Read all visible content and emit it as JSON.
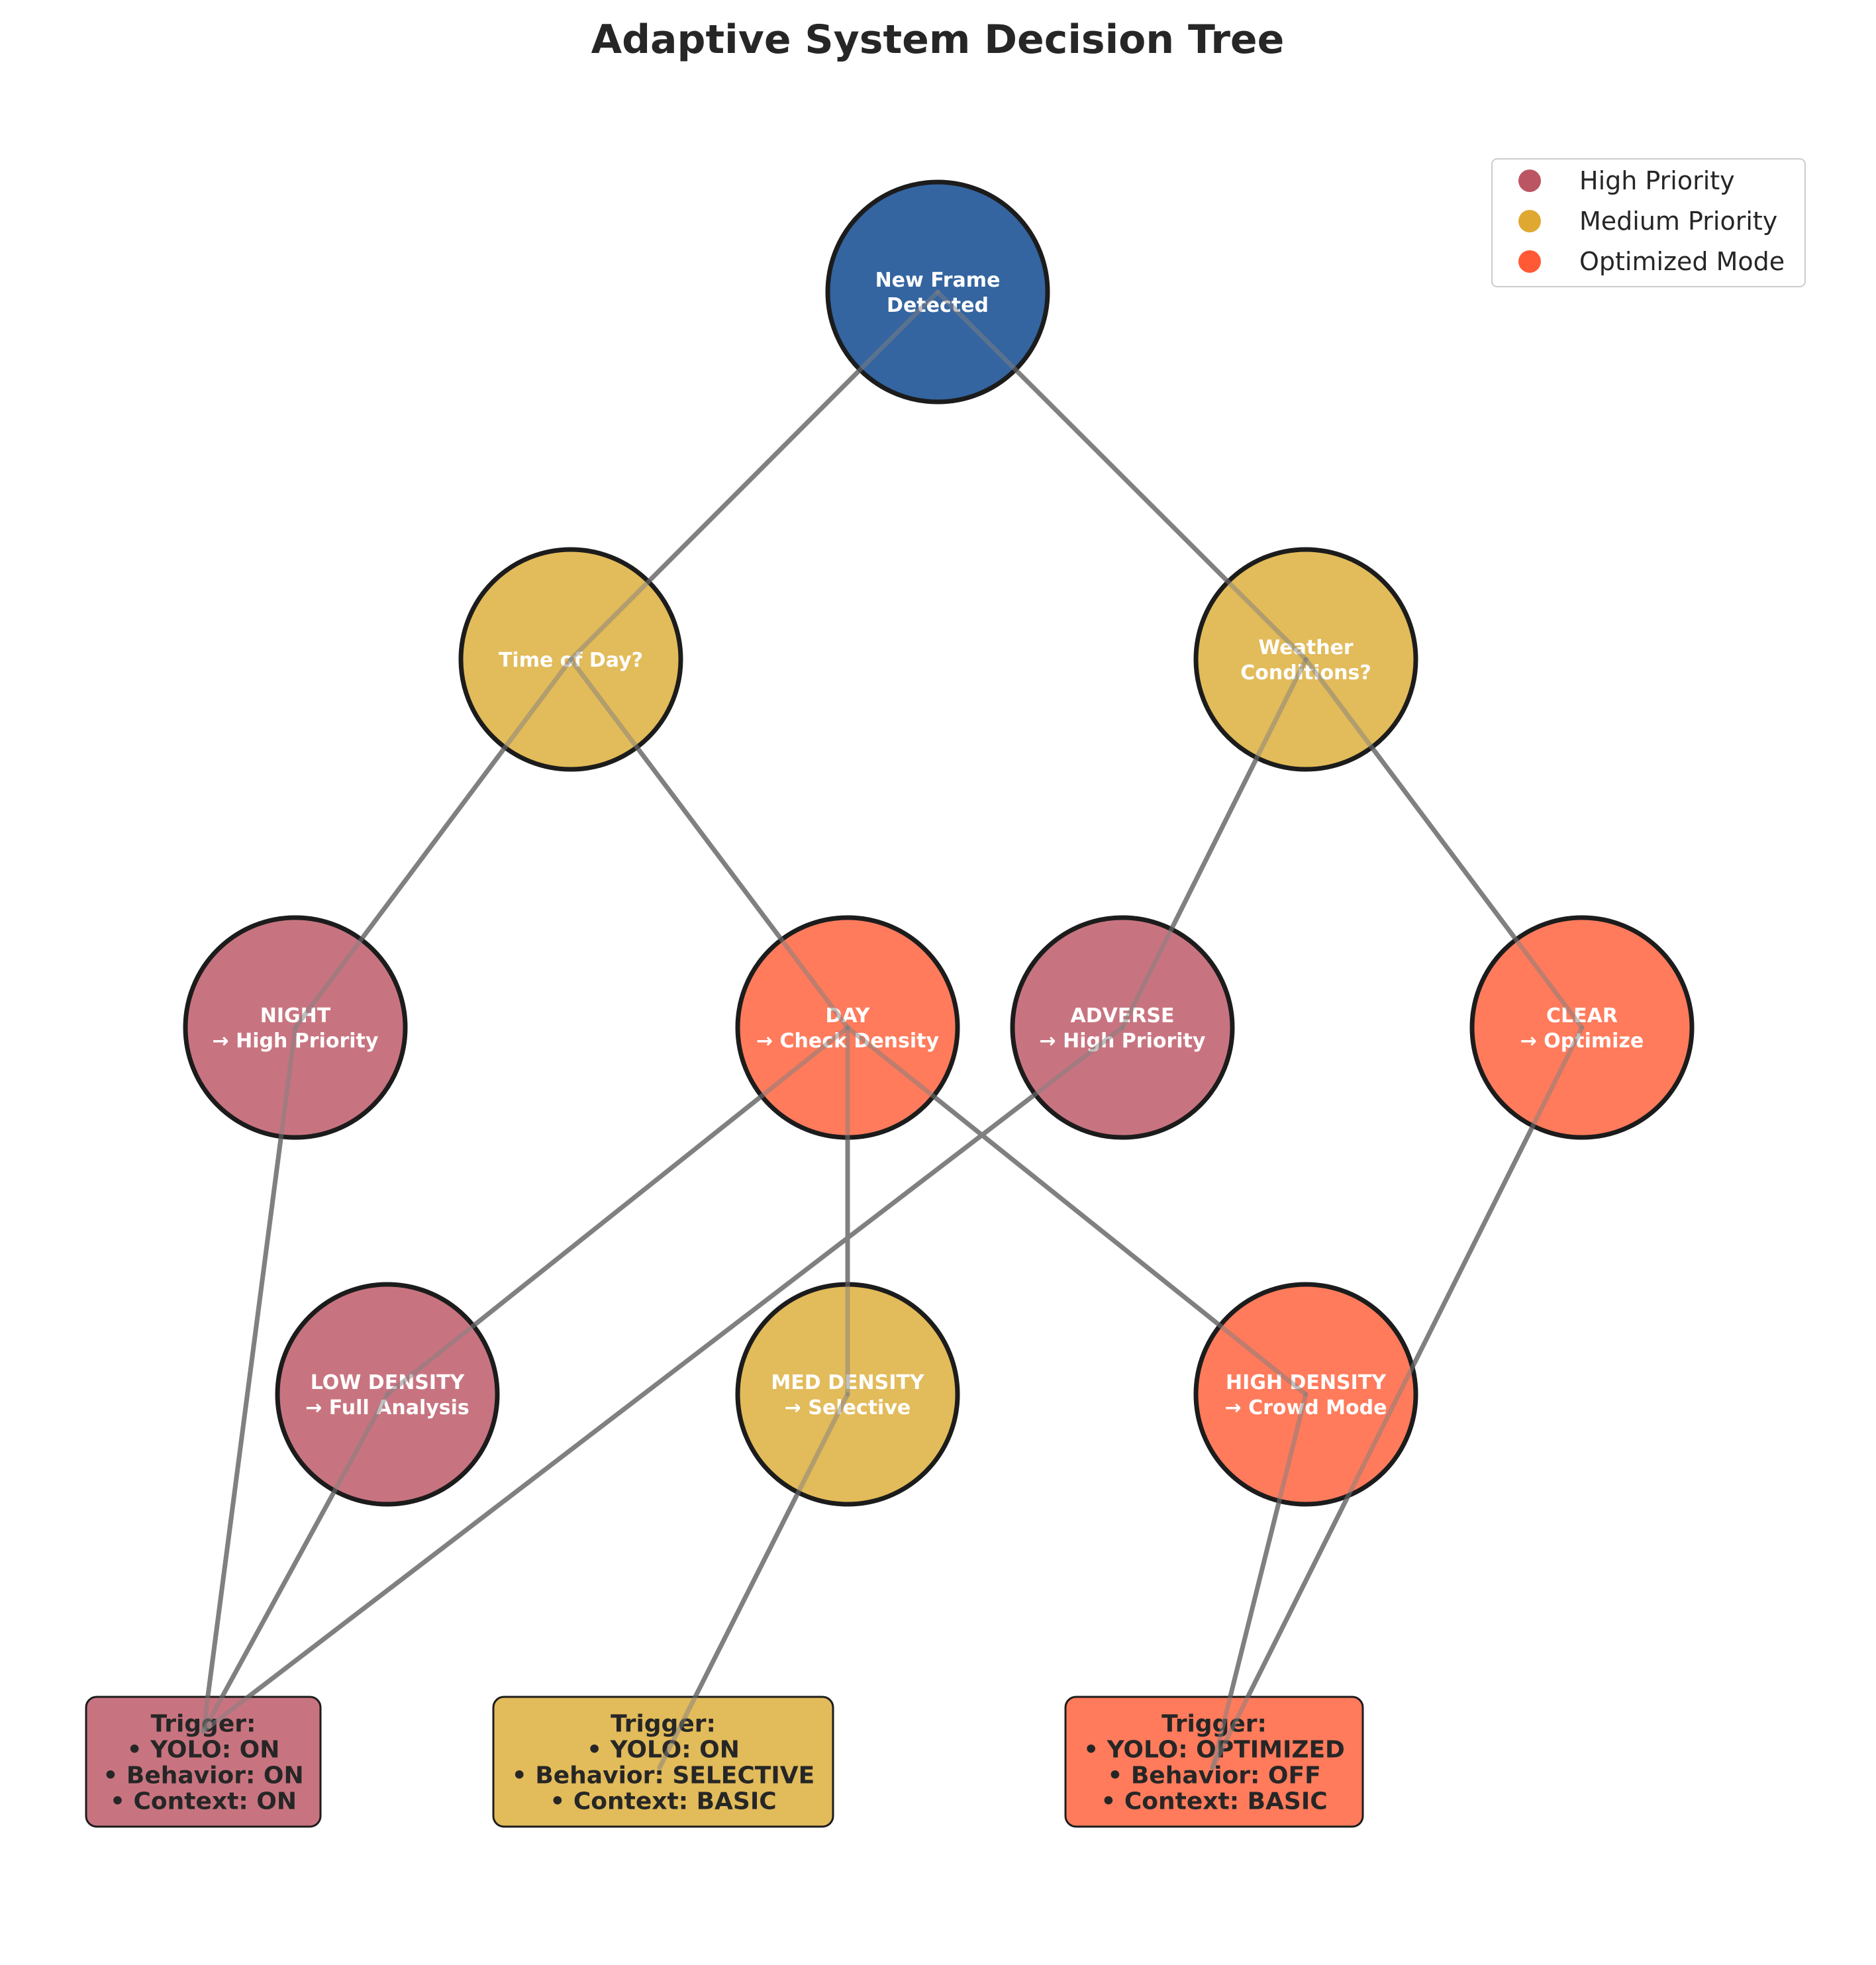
{
  "title": "Adaptive System Decision Tree",
  "colors": {
    "root": "#3465a0",
    "high": "#c87480",
    "medium": "#e2bb5a",
    "optimized": "#ff7b5c",
    "legend_high": "#bc5563",
    "legend_medium": "#dfa931",
    "legend_optimized": "#ff5a35",
    "edge": "#808080",
    "outline": "#1c1c1c"
  },
  "nodes": [
    {
      "id": "root",
      "lines": [
        "New Frame",
        "Detected"
      ],
      "category": "root"
    },
    {
      "id": "time",
      "lines": [
        "Time of Day?"
      ],
      "category": "medium"
    },
    {
      "id": "weather",
      "lines": [
        "Weather",
        "Conditions?"
      ],
      "category": "medium"
    },
    {
      "id": "night",
      "lines": [
        "NIGHT",
        "→ High Priority"
      ],
      "category": "high"
    },
    {
      "id": "day",
      "lines": [
        "DAY",
        "→ Check Density"
      ],
      "category": "optimized"
    },
    {
      "id": "adverse",
      "lines": [
        "ADVERSE",
        "→ High Priority"
      ],
      "category": "high"
    },
    {
      "id": "clear",
      "lines": [
        "CLEAR",
        "→ Optimize"
      ],
      "category": "optimized"
    },
    {
      "id": "low",
      "lines": [
        "LOW DENSITY",
        "→ Full Analysis"
      ],
      "category": "high"
    },
    {
      "id": "med",
      "lines": [
        "MED DENSITY",
        "→ Selective"
      ],
      "category": "medium"
    },
    {
      "id": "highd",
      "lines": [
        "HIGH DENSITY",
        "→ Crowd Mode"
      ],
      "category": "optimized"
    }
  ],
  "triggers": [
    {
      "id": "trigger-high",
      "category": "high",
      "lines": [
        "Trigger:",
        "• YOLO: ON",
        "• Behavior: ON",
        "• Context: ON"
      ]
    },
    {
      "id": "trigger-medium",
      "category": "medium",
      "lines": [
        "Trigger:",
        "• YOLO: ON",
        "• Behavior: SELECTIVE",
        "• Context: BASIC"
      ]
    },
    {
      "id": "trigger-optimized",
      "category": "optimized",
      "lines": [
        "Trigger:",
        "• YOLO: OPTIMIZED",
        "• Behavior: OFF",
        "• Context: BASIC"
      ]
    }
  ],
  "edges": [
    [
      "root",
      "time"
    ],
    [
      "root",
      "weather"
    ],
    [
      "time",
      "night"
    ],
    [
      "time",
      "day"
    ],
    [
      "weather",
      "adverse"
    ],
    [
      "weather",
      "clear"
    ],
    [
      "day",
      "low"
    ],
    [
      "day",
      "med"
    ],
    [
      "day",
      "highd"
    ],
    [
      "night",
      "trigger-high"
    ],
    [
      "low",
      "trigger-high"
    ],
    [
      "adverse",
      "trigger-high"
    ],
    [
      "med",
      "trigger-medium"
    ],
    [
      "highd",
      "trigger-optimized"
    ],
    [
      "clear",
      "trigger-optimized"
    ]
  ],
  "legend": [
    {
      "label": "High Priority",
      "color_key": "legend_high"
    },
    {
      "label": "Medium Priority",
      "color_key": "legend_medium"
    },
    {
      "label": "Optimized Mode",
      "color_key": "legend_optimized"
    }
  ]
}
